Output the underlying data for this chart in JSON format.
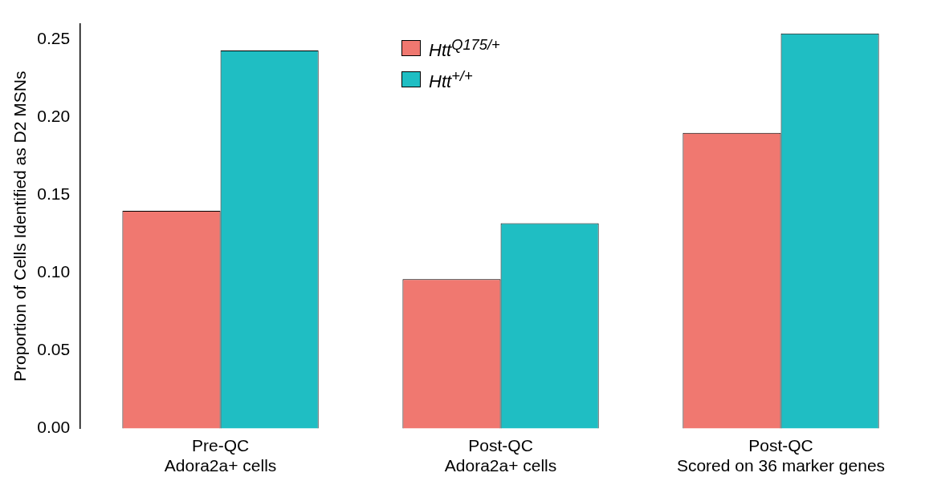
{
  "chart_data": {
    "type": "bar",
    "ylabel": "Proportion of Cells Identified as D2 MSNs",
    "categories": [
      "Pre-QC\nAdora2a+ cells",
      "Post-QC\nAdora2a+ cells",
      "Post-QC\nScored on 36 marker genes"
    ],
    "series": [
      {
        "name": "Htt$^{Q175/+}$",
        "color": "#f07870",
        "values": [
          0.14,
          0.096,
          0.19
        ]
      },
      {
        "name": "Htt$^{+/+}$",
        "color": "#1fbec3",
        "values": [
          0.243,
          0.132,
          0.254
        ]
      }
    ],
    "ylim": [
      0,
      0.26
    ],
    "yticks": [
      {
        "value": 0,
        "label": "0.00"
      },
      {
        "value": 0.05,
        "label": "0.05"
      },
      {
        "value": 0.1,
        "label": "0.10"
      },
      {
        "value": 0.15,
        "label": "0.15"
      },
      {
        "value": 0.2,
        "label": "0.20"
      },
      {
        "value": 0.25,
        "label": "0.25"
      }
    ],
    "grid": false,
    "legend": "top"
  }
}
